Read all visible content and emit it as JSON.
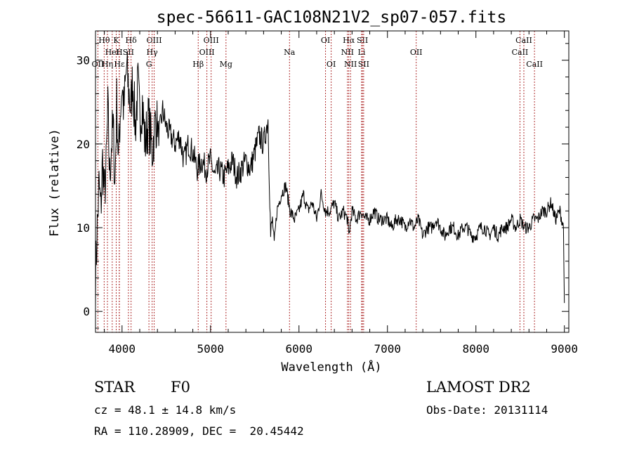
{
  "chart_data": {
    "type": "line",
    "title": "spec-56611-GAC108N21V2_sp07-057.fits",
    "xlabel": "Wavelength (Å)",
    "ylabel": "Flux (relative)",
    "xlim": [
      3700,
      9050
    ],
    "ylim": [
      -2.5,
      33.5
    ],
    "xticks": [
      4000,
      5000,
      6000,
      7000,
      8000,
      9000
    ],
    "yticks": [
      0,
      10,
      20,
      30
    ],
    "grid": false,
    "series": [
      {
        "x": [
          3700,
          3720,
          3740,
          3760,
          3780,
          3800,
          3820,
          3840,
          3860,
          3880,
          3900,
          3920,
          3940,
          3960,
          3980,
          4000,
          4020,
          4050,
          4080,
          4100,
          4120,
          4150,
          4180,
          4200,
          4230,
          4260,
          4300,
          4340,
          4380,
          4420,
          4460,
          4500,
          4550,
          4600,
          4650,
          4700,
          4750,
          4800,
          4850,
          4900,
          4950,
          5000,
          5050,
          5100,
          5150,
          5200,
          5250,
          5300,
          5350,
          5400,
          5450,
          5500,
          5550,
          5600,
          5650,
          5680,
          5700,
          5720,
          5750,
          5800,
          5850,
          5900,
          5950,
          6000,
          6050,
          6100,
          6150,
          6200,
          6250,
          6300,
          6350,
          6400,
          6450,
          6500,
          6550,
          6563,
          6600,
          6650,
          6700,
          6750,
          6800,
          6850,
          6900,
          6950,
          7000,
          7050,
          7100,
          7150,
          7200,
          7250,
          7300,
          7350,
          7400,
          7450,
          7500,
          7550,
          7600,
          7650,
          7700,
          7750,
          7800,
          7850,
          7900,
          7950,
          8000,
          8050,
          8100,
          8150,
          8200,
          8250,
          8300,
          8350,
          8400,
          8450,
          8500,
          8550,
          8600,
          8650,
          8700,
          8750,
          8800,
          8850,
          8900,
          8950,
          8990,
          9000
        ],
        "y": [
          4,
          10,
          15,
          12,
          18,
          14,
          17,
          24,
          16,
          20,
          22,
          15,
          25,
          18,
          24,
          27,
          24,
          29,
          26,
          24,
          28,
          22,
          27,
          23,
          25,
          20,
          23,
          19,
          23,
          21,
          24,
          22,
          21,
          20,
          21,
          18,
          20,
          19,
          17,
          18,
          17,
          18,
          16,
          17,
          16,
          17,
          18,
          16,
          17,
          18,
          17,
          19,
          21,
          20,
          23,
          9,
          11,
          8,
          12,
          14,
          15,
          12,
          11,
          12,
          14,
          12,
          13,
          11,
          14,
          12,
          12,
          13,
          11,
          12,
          11,
          9,
          12,
          11,
          12,
          11,
          11,
          12,
          11,
          11,
          11,
          10,
          11,
          11,
          10,
          11,
          10,
          11,
          9,
          10,
          10,
          11,
          10,
          9,
          10,
          10,
          9,
          10,
          10,
          9,
          9,
          10,
          10,
          9,
          10,
          9,
          10,
          10,
          11,
          10,
          11,
          10,
          10,
          11,
          11,
          12,
          12,
          13,
          11,
          12,
          10,
          1
        ]
      }
    ],
    "spectral_lines": [
      {
        "label": "Hθ",
        "x": 3798,
        "row": 0
      },
      {
        "label": "K",
        "x": 3934,
        "row": 0
      },
      {
        "label": "Hδ",
        "x": 4102,
        "row": 0
      },
      {
        "label": "OIII",
        "x": 4363,
        "row": 0
      },
      {
        "label": "OIII",
        "x": 5007,
        "row": 0
      },
      {
        "label": "OI",
        "x": 6300,
        "row": 0
      },
      {
        "label": "Hα",
        "x": 6563,
        "row": 0
      },
      {
        "label": "SII",
        "x": 6717,
        "row": 0
      },
      {
        "label": "CaII",
        "x": 8542,
        "row": 0
      },
      {
        "label": "HeI",
        "x": 3889,
        "row": 1
      },
      {
        "label": "H",
        "x": 3968,
        "row": 1
      },
      {
        "label": "SII",
        "x": 4072,
        "row": 1
      },
      {
        "label": "Hγ",
        "x": 4340,
        "row": 1
      },
      {
        "label": "OIII",
        "x": 4959,
        "row": 1
      },
      {
        "label": "Na",
        "x": 5893,
        "row": 1
      },
      {
        "label": "NII",
        "x": 6548,
        "row": 1
      },
      {
        "label": "Li",
        "x": 6708,
        "row": 1
      },
      {
        "label": "OII",
        "x": 7325,
        "row": 1
      },
      {
        "label": "CaII",
        "x": 8498,
        "row": 1
      },
      {
        "label": "OII",
        "x": 3727,
        "row": 2
      },
      {
        "label": "Hη",
        "x": 3835,
        "row": 2
      },
      {
        "label": "Hε",
        "x": 3970,
        "row": 2
      },
      {
        "label": "G",
        "x": 4304,
        "row": 2
      },
      {
        "label": "Hβ",
        "x": 4861,
        "row": 2
      },
      {
        "label": "Mg",
        "x": 5175,
        "row": 2
      },
      {
        "label": "OI",
        "x": 6364,
        "row": 2
      },
      {
        "label": "NII",
        "x": 6583,
        "row": 2
      },
      {
        "label": "SII",
        "x": 6731,
        "row": 2
      },
      {
        "label": "CaII",
        "x": 8662,
        "row": 2
      }
    ]
  },
  "info": {
    "class_label": "STAR",
    "subclass_label": "F0",
    "survey": "LAMOST DR2",
    "redshift_text": "cz = 48.1 ± 14.8 km/s",
    "obs_date_text": "Obs-Date: 20131114",
    "coords_text": "RA = 110.28909, DEC =  20.45442"
  }
}
